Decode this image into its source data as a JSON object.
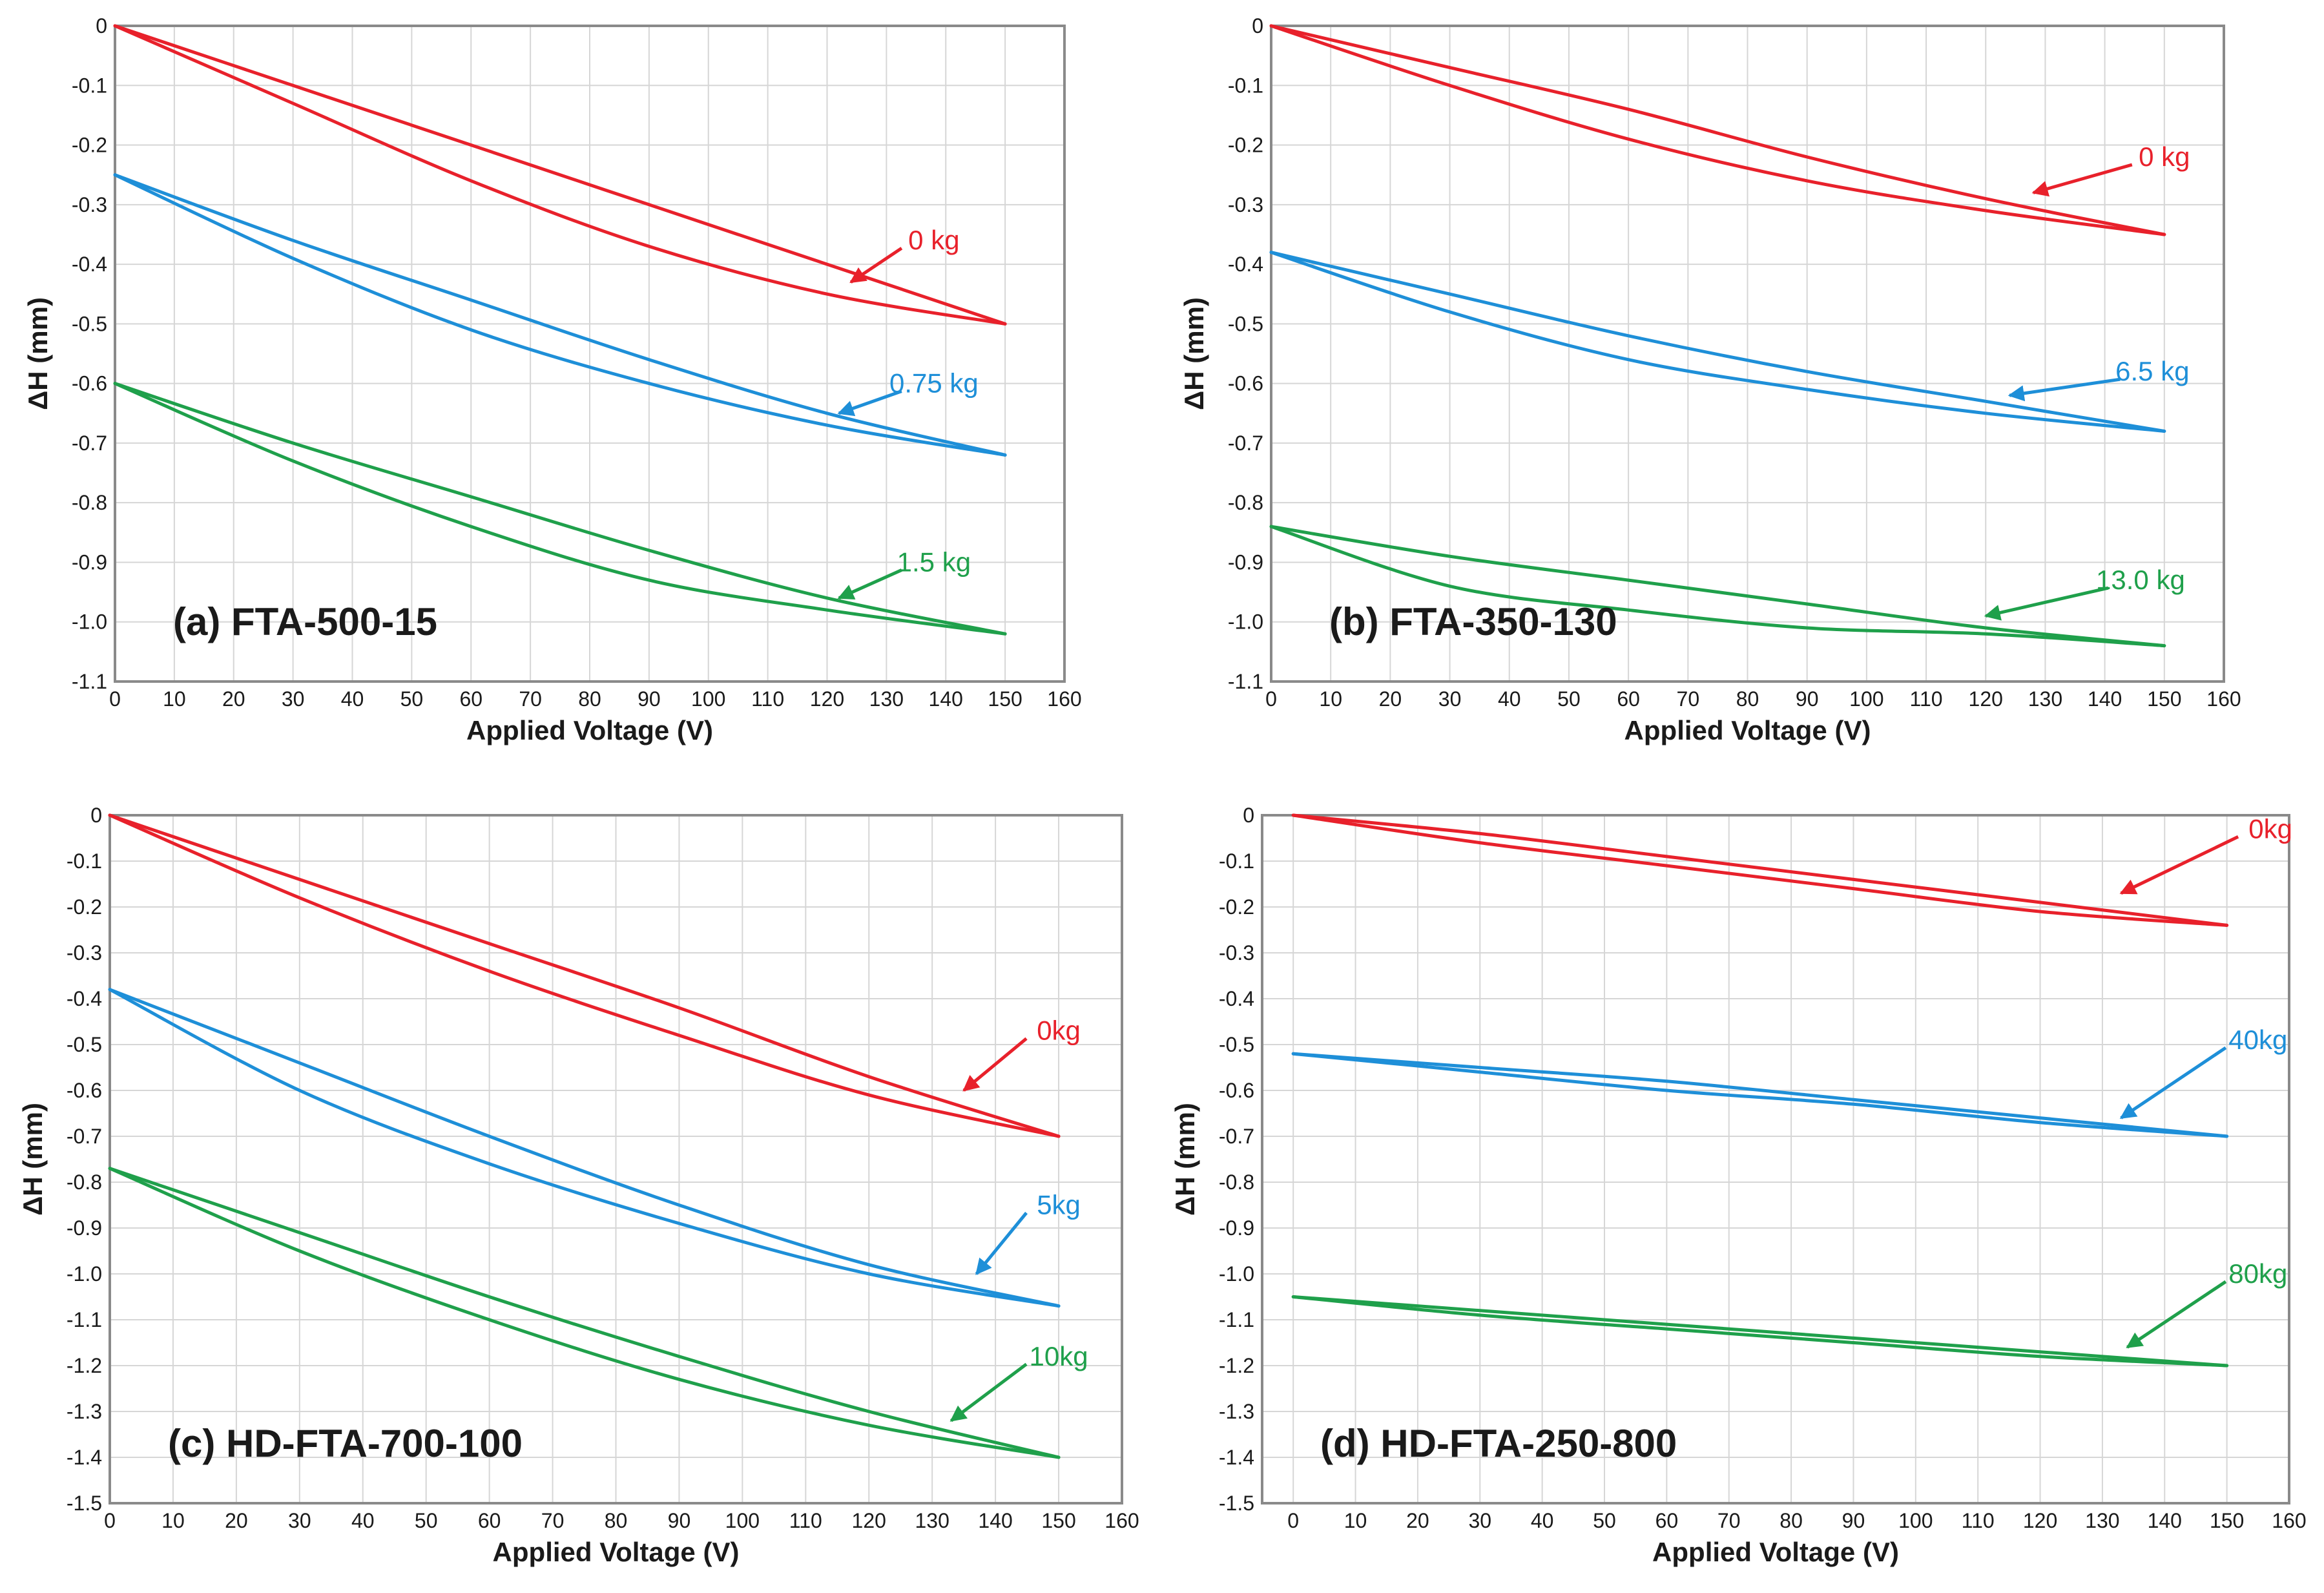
{
  "chart_data": [
    {
      "type": "line",
      "title": "(a) FTA-500-15",
      "xlabel": "Applied Voltage (V)",
      "ylabel": "ΔH (mm)",
      "xlim": [
        0,
        160
      ],
      "ylim": [
        -1.1,
        0
      ],
      "xticks": [
        0,
        10,
        20,
        30,
        40,
        50,
        60,
        70,
        80,
        90,
        100,
        110,
        120,
        130,
        140,
        150,
        160
      ],
      "yticks": [
        0,
        -0.1,
        -0.2,
        -0.3,
        -0.4,
        -0.5,
        -0.6,
        -0.7,
        -0.8,
        -0.9,
        -1.0,
        -1.1
      ],
      "ytick_labels": [
        "0",
        "-0.1",
        "-0.2",
        "-0.3",
        "-0.4",
        "-0.5",
        "-0.6",
        "-0.7",
        "-0.8",
        "-0.9",
        "-1.0",
        "-1.1"
      ],
      "grid": true,
      "series": [
        {
          "name": "0 kg",
          "color": "#e8212b",
          "x": [
            0,
            30,
            60,
            90,
            120,
            150
          ],
          "y_up": [
            0,
            -0.1,
            -0.2,
            -0.3,
            -0.4,
            -0.5
          ],
          "y_down": [
            0,
            -0.13,
            -0.26,
            -0.37,
            -0.45,
            -0.5
          ],
          "label_at": [
            138,
            -0.36
          ],
          "arrow_to": [
            124,
            -0.43
          ]
        },
        {
          "name": "0.75 kg",
          "color": "#1e8fd8",
          "x": [
            0,
            30,
            60,
            90,
            120,
            150
          ],
          "y_up": [
            -0.25,
            -0.36,
            -0.46,
            -0.56,
            -0.65,
            -0.72
          ],
          "y_down": [
            -0.25,
            -0.39,
            -0.51,
            -0.6,
            -0.67,
            -0.72
          ],
          "label_at": [
            138,
            -0.6
          ],
          "arrow_to": [
            122,
            -0.65
          ]
        },
        {
          "name": "1.5 kg",
          "color": "#1fa04b",
          "x": [
            0,
            30,
            60,
            90,
            120,
            150
          ],
          "y_up": [
            -0.6,
            -0.7,
            -0.79,
            -0.88,
            -0.96,
            -1.02
          ],
          "y_down": [
            -0.6,
            -0.73,
            -0.84,
            -0.93,
            -0.98,
            -1.02
          ],
          "label_at": [
            138,
            -0.9
          ],
          "arrow_to": [
            122,
            -0.96
          ]
        }
      ]
    },
    {
      "type": "line",
      "title": "(b) FTA-350-130",
      "xlabel": "Applied Voltage (V)",
      "ylabel": "ΔH (mm)",
      "xlim": [
        0,
        160
      ],
      "ylim": [
        -1.1,
        0
      ],
      "xticks": [
        0,
        10,
        20,
        30,
        40,
        50,
        60,
        70,
        80,
        90,
        100,
        110,
        120,
        130,
        140,
        150,
        160
      ],
      "yticks": [
        0,
        -0.1,
        -0.2,
        -0.3,
        -0.4,
        -0.5,
        -0.6,
        -0.7,
        -0.8,
        -0.9,
        -1.0,
        -1.1
      ],
      "ytick_labels": [
        "0",
        "-0.1",
        "-0.2",
        "-0.3",
        "-0.4",
        "-0.5",
        "-0.6",
        "-0.7",
        "-0.8",
        "-0.9",
        "-1.0",
        "-1.1"
      ],
      "grid": true,
      "series": [
        {
          "name": "0 kg",
          "color": "#e8212b",
          "x": [
            0,
            30,
            60,
            90,
            120,
            150
          ],
          "y_up": [
            0,
            -0.07,
            -0.14,
            -0.22,
            -0.29,
            -0.35
          ],
          "y_down": [
            0,
            -0.1,
            -0.19,
            -0.26,
            -0.31,
            -0.35
          ],
          "label_at": [
            150,
            -0.22
          ],
          "arrow_to": [
            128,
            -0.28
          ]
        },
        {
          "name": "6.5 kg",
          "color": "#1e8fd8",
          "x": [
            0,
            30,
            60,
            90,
            120,
            150
          ],
          "y_up": [
            -0.38,
            -0.45,
            -0.52,
            -0.58,
            -0.63,
            -0.68
          ],
          "y_down": [
            -0.38,
            -0.48,
            -0.56,
            -0.61,
            -0.65,
            -0.68
          ],
          "label_at": [
            148,
            -0.58
          ],
          "arrow_to": [
            124,
            -0.62
          ]
        },
        {
          "name": "13.0 kg",
          "color": "#1fa04b",
          "x": [
            0,
            30,
            60,
            90,
            120,
            150
          ],
          "y_up": [
            -0.84,
            -0.89,
            -0.93,
            -0.97,
            -1.01,
            -1.04
          ],
          "y_down": [
            -0.84,
            -0.94,
            -0.98,
            -1.01,
            -1.02,
            -1.04
          ],
          "label_at": [
            146,
            -0.93
          ],
          "arrow_to": [
            120,
            -0.99
          ]
        }
      ]
    },
    {
      "type": "line",
      "title": "(c) HD-FTA-700-100",
      "xlabel": "Applied Voltage (V)",
      "ylabel": "ΔH (mm)",
      "xlim": [
        0,
        160
      ],
      "ylim": [
        -1.5,
        0
      ],
      "xticks": [
        0,
        10,
        20,
        30,
        40,
        50,
        60,
        70,
        80,
        90,
        100,
        110,
        120,
        130,
        140,
        150,
        160
      ],
      "yticks": [
        0,
        -0.1,
        -0.2,
        -0.3,
        -0.4,
        -0.5,
        -0.6,
        -0.7,
        -0.8,
        -0.9,
        -1.0,
        -1.1,
        -1.2,
        -1.3,
        -1.4,
        -1.5
      ],
      "ytick_labels": [
        "0",
        "-0.1",
        "-0.2",
        "-0.3",
        "-0.4",
        "-0.5",
        "-0.6",
        "-0.7",
        "-0.8",
        "-0.9",
        "-1.0",
        "-1.1",
        "-1.2",
        "-1.3",
        "-1.4",
        "-1.5"
      ],
      "grid": true,
      "series": [
        {
          "name": "0kg",
          "color": "#e8212b",
          "x": [
            0,
            30,
            60,
            90,
            120,
            150
          ],
          "y_up": [
            0,
            -0.14,
            -0.28,
            -0.42,
            -0.57,
            -0.7
          ],
          "y_down": [
            0,
            -0.18,
            -0.34,
            -0.48,
            -0.61,
            -0.7
          ],
          "label_at": [
            150,
            -0.47
          ],
          "arrow_to": [
            135,
            -0.6
          ]
        },
        {
          "name": "5kg",
          "color": "#1e8fd8",
          "x": [
            0,
            30,
            60,
            90,
            120,
            150
          ],
          "y_up": [
            -0.38,
            -0.54,
            -0.7,
            -0.85,
            -0.98,
            -1.07
          ],
          "y_down": [
            -0.38,
            -0.6,
            -0.76,
            -0.89,
            -1.0,
            -1.07
          ],
          "label_at": [
            150,
            -0.85
          ],
          "arrow_to": [
            137,
            -1.0
          ]
        },
        {
          "name": "10kg",
          "color": "#1fa04b",
          "x": [
            0,
            30,
            60,
            90,
            120,
            150
          ],
          "y_up": [
            -0.77,
            -0.91,
            -1.05,
            -1.18,
            -1.3,
            -1.4
          ],
          "y_down": [
            -0.77,
            -0.95,
            -1.1,
            -1.23,
            -1.33,
            -1.4
          ],
          "label_at": [
            150,
            -1.18
          ],
          "arrow_to": [
            133,
            -1.32
          ]
        }
      ]
    },
    {
      "type": "line",
      "title": "(d) HD-FTA-250-800",
      "xlabel": "Applied Voltage (V)",
      "ylabel": "ΔH (mm)",
      "xlim": [
        -5,
        160
      ],
      "ylim": [
        -1.5,
        0
      ],
      "xticks": [
        0,
        10,
        20,
        30,
        40,
        50,
        60,
        70,
        80,
        90,
        100,
        110,
        120,
        130,
        140,
        150,
        160
      ],
      "yticks": [
        0,
        -0.1,
        -0.2,
        -0.3,
        -0.4,
        -0.5,
        -0.6,
        -0.7,
        -0.8,
        -0.9,
        -1.0,
        -1.1,
        -1.2,
        -1.3,
        -1.4,
        -1.5
      ],
      "ytick_labels": [
        "0",
        "-0.1",
        "-0.2",
        "-0.3",
        "-0.4",
        "-0.5",
        "-0.6",
        "-0.7",
        "-0.8",
        "-0.9",
        "-1.0",
        "-1.1",
        "-1.2",
        "-1.3",
        "-1.4",
        "-1.5"
      ],
      "grid": true,
      "series": [
        {
          "name": "0kg",
          "color": "#e8212b",
          "x": [
            0,
            30,
            60,
            90,
            120,
            150
          ],
          "y_up": [
            0,
            -0.04,
            -0.09,
            -0.14,
            -0.19,
            -0.24
          ],
          "y_down": [
            0,
            -0.06,
            -0.11,
            -0.16,
            -0.21,
            -0.24
          ],
          "label_at": [
            157,
            -0.03
          ],
          "arrow_to": [
            133,
            -0.17
          ]
        },
        {
          "name": "40kg",
          "color": "#1e8fd8",
          "x": [
            0,
            30,
            60,
            90,
            120,
            150
          ],
          "y_up": [
            -0.52,
            -0.55,
            -0.58,
            -0.62,
            -0.66,
            -0.7
          ],
          "y_down": [
            -0.52,
            -0.56,
            -0.6,
            -0.63,
            -0.67,
            -0.7
          ],
          "label_at": [
            155,
            -0.49
          ],
          "arrow_to": [
            133,
            -0.66
          ]
        },
        {
          "name": "80kg",
          "color": "#1fa04b",
          "x": [
            0,
            30,
            60,
            90,
            120,
            150
          ],
          "y_up": [
            -1.05,
            -1.08,
            -1.11,
            -1.14,
            -1.17,
            -1.2
          ],
          "y_down": [
            -1.05,
            -1.09,
            -1.12,
            -1.15,
            -1.18,
            -1.2
          ],
          "label_at": [
            155,
            -1.0
          ],
          "arrow_to": [
            134,
            -1.16
          ]
        }
      ]
    }
  ]
}
